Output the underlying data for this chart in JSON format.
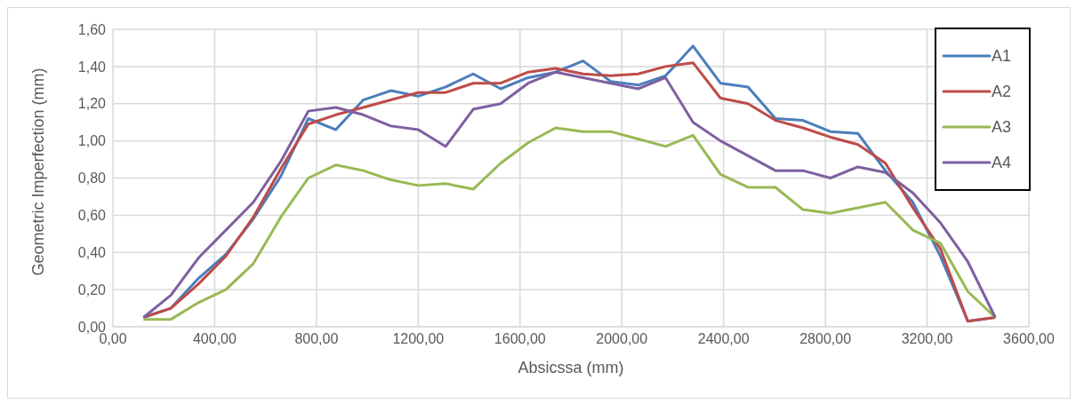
{
  "chart_data": {
    "type": "line",
    "xlabel": "Absicssa (mm)",
    "ylabel": "Geometric Imperfection (mm)",
    "x": [
      120,
      228,
      336,
      444,
      552,
      660,
      768,
      876,
      984,
      1092,
      1200,
      1308,
      1416,
      1524,
      1632,
      1740,
      1848,
      1956,
      2064,
      2172,
      2280,
      2388,
      2496,
      2604,
      2712,
      2820,
      2928,
      3036,
      3144,
      3252,
      3360,
      3468
    ],
    "series": [
      {
        "name": "A1",
        "color": "#4a7ebb",
        "values": [
          0.05,
          0.1,
          0.26,
          0.39,
          0.58,
          0.81,
          1.12,
          1.06,
          1.22,
          1.27,
          1.24,
          1.29,
          1.36,
          1.28,
          1.34,
          1.37,
          1.43,
          1.32,
          1.3,
          1.35,
          1.51,
          1.31,
          1.29,
          1.12,
          1.11,
          1.05,
          1.04,
          0.84,
          0.67,
          0.38,
          0.03,
          0.05
        ]
      },
      {
        "name": "A2",
        "color": "#be4b48",
        "values": [
          0.05,
          0.1,
          0.23,
          0.38,
          0.59,
          0.85,
          1.09,
          1.14,
          1.18,
          1.22,
          1.26,
          1.26,
          1.31,
          1.31,
          1.37,
          1.39,
          1.36,
          1.35,
          1.36,
          1.4,
          1.42,
          1.23,
          1.2,
          1.11,
          1.07,
          1.02,
          0.98,
          0.88,
          0.64,
          0.42,
          0.03,
          0.05
        ]
      },
      {
        "name": "A3",
        "color": "#98b954",
        "values": [
          0.04,
          0.04,
          0.13,
          0.2,
          0.34,
          0.59,
          0.8,
          0.87,
          0.84,
          0.79,
          0.76,
          0.77,
          0.74,
          0.88,
          0.99,
          1.07,
          1.05,
          1.05,
          1.01,
          0.97,
          1.03,
          0.82,
          0.75,
          0.75,
          0.63,
          0.61,
          0.64,
          0.67,
          0.52,
          0.45,
          0.19,
          0.05
        ]
      },
      {
        "name": "A4",
        "color": "#7d60a0",
        "values": [
          0.05,
          0.17,
          0.37,
          0.52,
          0.67,
          0.89,
          1.16,
          1.18,
          1.14,
          1.08,
          1.06,
          0.97,
          1.17,
          1.2,
          1.31,
          1.37,
          1.34,
          1.31,
          1.28,
          1.34,
          1.1,
          1.0,
          0.92,
          0.84,
          0.84,
          0.8,
          0.86,
          0.83,
          0.72,
          0.56,
          0.35,
          0.05
        ]
      }
    ],
    "xlim": [
      0,
      3600
    ],
    "xticks": [
      {
        "value": 0,
        "label": "0,00"
      },
      {
        "value": 400,
        "label": "400,00"
      },
      {
        "value": 800,
        "label": "800,00"
      },
      {
        "value": 1200,
        "label": "1200,00"
      },
      {
        "value": 1600,
        "label": "1600,00"
      },
      {
        "value": 2000,
        "label": "2000,00"
      },
      {
        "value": 2400,
        "label": "2400,00"
      },
      {
        "value": 2800,
        "label": "2800,00"
      },
      {
        "value": 3200,
        "label": "3200,00"
      },
      {
        "value": 3600,
        "label": "3600,00"
      }
    ],
    "ylim": [
      0,
      1.6
    ],
    "yticks": [
      {
        "value": 0,
        "label": "0,00"
      },
      {
        "value": 0.2,
        "label": "0,20"
      },
      {
        "value": 0.4,
        "label": "0,40"
      },
      {
        "value": 0.6,
        "label": "0,60"
      },
      {
        "value": 0.8,
        "label": "0,80"
      },
      {
        "value": 1,
        "label": "1,00"
      },
      {
        "value": 1.2,
        "label": "1,20"
      },
      {
        "value": 1.4,
        "label": "1,40"
      },
      {
        "value": 1.6,
        "label": "1,60"
      }
    ],
    "grid": true,
    "legend": "top right",
    "marker": "none",
    "line_style": "solid"
  }
}
